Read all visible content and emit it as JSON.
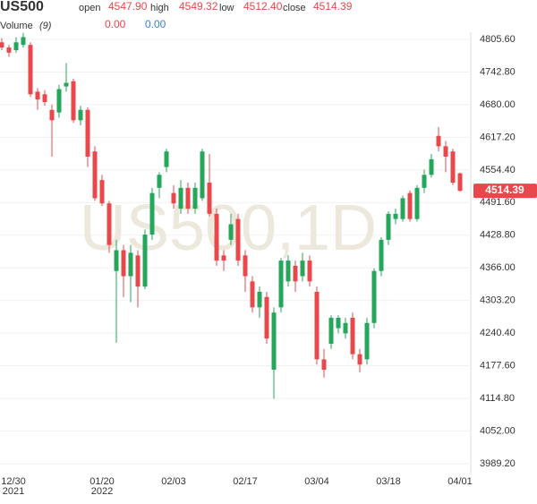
{
  "header": {
    "symbol": "US500",
    "open_label": "open",
    "open": "4547.90",
    "high_label": "high",
    "high": "4549.32",
    "low_label": "low",
    "low": "4512.40",
    "close_label": "close",
    "close": "4514.39",
    "volume_label": "Volume",
    "volume_period": "(9)",
    "volume_a": "0.00",
    "volume_b": "0.00"
  },
  "chart_data": {
    "type": "candlestick",
    "watermark": "US500,1D",
    "up_color": "#26a65b",
    "down_color": "#e8474c",
    "categories": [
      "12/30",
      null,
      null,
      null,
      null,
      null,
      null,
      null,
      null,
      null,
      null,
      null,
      null,
      null,
      "01/20",
      null,
      null,
      null,
      null,
      null,
      null,
      null,
      null,
      null,
      "02/03",
      null,
      null,
      null,
      null,
      null,
      null,
      null,
      null,
      null,
      "02/17",
      null,
      null,
      null,
      null,
      null,
      null,
      null,
      null,
      null,
      "03/04",
      null,
      null,
      null,
      null,
      null,
      null,
      null,
      null,
      null,
      "03/18",
      null,
      null,
      null,
      null,
      null,
      null,
      null,
      null,
      null,
      "04/01"
    ],
    "category_years": [
      "2021",
      null,
      null,
      null,
      null,
      null,
      null,
      null,
      null,
      null,
      null,
      null,
      null,
      null,
      "2022",
      null,
      null,
      null,
      null,
      null,
      null,
      null,
      null,
      null,
      null,
      null,
      null,
      null,
      null,
      null,
      null,
      null,
      null,
      null,
      null,
      null,
      null,
      null,
      null,
      null,
      null,
      null,
      null,
      null,
      null,
      null,
      null,
      null,
      null,
      null,
      null,
      null,
      null,
      null,
      null,
      null,
      null,
      null,
      null,
      null,
      null,
      null,
      null,
      null,
      null
    ],
    "open": [
      4800,
      4790,
      4785,
      4795,
      4795,
      4705,
      4700,
      4670,
      4665,
      4715,
      4725,
      4650,
      4670,
      4590,
      4535,
      4490,
      4360,
      4400,
      4350,
      4390,
      4330,
      4430,
      4520,
      4560,
      4510,
      4480,
      4520,
      4480,
      4500,
      4530,
      4470,
      4390,
      4420,
      4460,
      4390,
      4340,
      4290,
      4310,
      4170,
      4290,
      4340,
      4370,
      4350,
      4380,
      4320,
      4190,
      4220,
      4250,
      4240,
      4270,
      4200,
      4190,
      4260,
      4360,
      4420,
      4460,
      4460,
      4510,
      4460,
      4520,
      4545,
      4620,
      4600,
      4590,
      4547.9
    ],
    "high": [
      4808,
      4795,
      4810,
      4818,
      4800,
      4712,
      4708,
      4680,
      4718,
      4760,
      4730,
      4678,
      4675,
      4600,
      4545,
      4495,
      4420,
      4410,
      4410,
      4400,
      4440,
      4520,
      4550,
      4595,
      4525,
      4535,
      4530,
      4530,
      4595,
      4585,
      4480,
      4400,
      4470,
      4470,
      4400,
      4350,
      4330,
      4320,
      4290,
      4385,
      4390,
      4380,
      4395,
      4390,
      4330,
      4210,
      4275,
      4275,
      4270,
      4280,
      4210,
      4270,
      4365,
      4425,
      4475,
      4480,
      4505,
      4515,
      4525,
      4555,
      4585,
      4637,
      4610,
      4595,
      4549.32
    ],
    "low": [
      4785,
      4772,
      4780,
      4790,
      4695,
      4670,
      4678,
      4580,
      4655,
      4705,
      4645,
      4640,
      4560,
      4495,
      4485,
      4395,
      4222,
      4310,
      4300,
      4290,
      4325,
      4420,
      4500,
      4550,
      4480,
      4470,
      4470,
      4470,
      4495,
      4465,
      4370,
      4360,
      4410,
      4370,
      4320,
      4280,
      4270,
      4220,
      4114,
      4280,
      4330,
      4320,
      4340,
      4330,
      4180,
      4155,
      4210,
      4240,
      4230,
      4190,
      4165,
      4180,
      4250,
      4350,
      4410,
      4450,
      4455,
      4455,
      4455,
      4510,
      4540,
      4590,
      4550,
      4525,
      4512.4
    ],
    "close": [
      4790,
      4780,
      4800,
      4810,
      4700,
      4690,
      4685,
      4650,
      4710,
      4722,
      4650,
      4670,
      4580,
      4500,
      4490,
      4410,
      4400,
      4350,
      4395,
      4330,
      4430,
      4510,
      4545,
      4590,
      4490,
      4520,
      4480,
      4520,
      4590,
      4470,
      4380,
      4380,
      4450,
      4380,
      4350,
      4290,
      4320,
      4230,
      4280,
      4380,
      4380,
      4340,
      4380,
      4340,
      4190,
      4170,
      4270,
      4270,
      4260,
      4200,
      4180,
      4260,
      4360,
      4420,
      4470,
      4470,
      4500,
      4460,
      4520,
      4545,
      4575,
      4600,
      4580,
      4530,
      4514.39
    ],
    "ylim": [
      3960,
      4830
    ],
    "yticks": [
      {
        "value": 4805.6,
        "label": "4805.60"
      },
      {
        "value": 4742.8,
        "label": "4742.80"
      },
      {
        "value": 4680,
        "label": "4680.00"
      },
      {
        "value": 4617.2,
        "label": "4617.20"
      },
      {
        "value": 4554.4,
        "label": "4554.40"
      },
      {
        "value": 4491.6,
        "label": "4491.60"
      },
      {
        "value": 4428.8,
        "label": "4428.80"
      },
      {
        "value": 4366,
        "label": "4366.00"
      },
      {
        "value": 4303.2,
        "label": "4303.20"
      },
      {
        "value": 4240.4,
        "label": "4240.40"
      },
      {
        "value": 4177.6,
        "label": "4177.60"
      },
      {
        "value": 4114.8,
        "label": "4114.80"
      },
      {
        "value": 4052,
        "label": "4052.00"
      },
      {
        "value": 3989.2,
        "label": "3989.20"
      }
    ],
    "grid": true
  }
}
